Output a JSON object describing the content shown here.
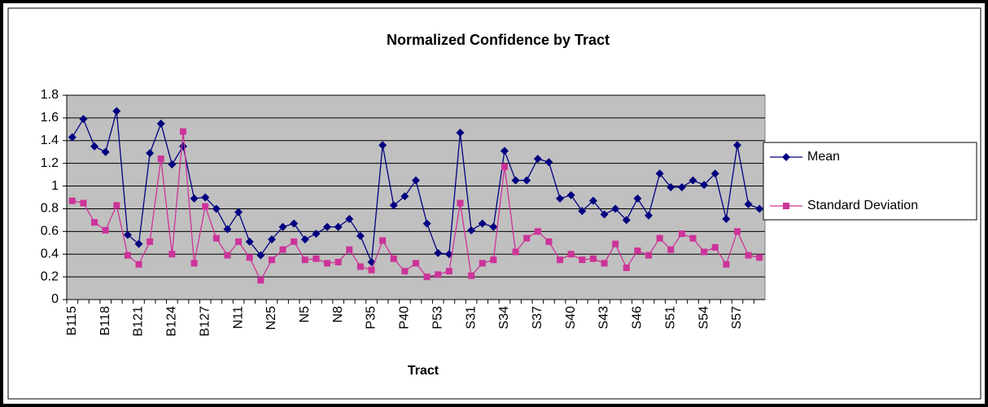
{
  "chart_data": {
    "type": "line",
    "title": "Normalized Confidence by Tract",
    "x_label": "Tract",
    "categories": [
      "B115",
      null,
      null,
      "B118",
      null,
      null,
      "B121",
      null,
      null,
      "B124",
      null,
      null,
      "B127",
      null,
      null,
      "N11",
      null,
      null,
      "N25",
      null,
      null,
      "N5",
      null,
      null,
      "N8",
      null,
      null,
      "P35",
      null,
      null,
      "P40",
      null,
      null,
      "P53",
      null,
      null,
      "S31",
      null,
      null,
      "S34",
      null,
      null,
      "S37",
      null,
      null,
      "S40",
      null,
      null,
      "S43",
      null,
      null,
      "S46",
      null,
      null,
      "S51",
      null,
      null,
      "S54",
      null,
      null,
      "S57",
      null,
      null
    ],
    "series": [
      {
        "name": "Mean",
        "color": "#000080",
        "marker": "diamond",
        "values": [
          1.43,
          1.59,
          1.35,
          1.3,
          1.66,
          0.57,
          0.49,
          1.29,
          1.55,
          1.19,
          1.35,
          0.89,
          0.9,
          0.8,
          0.62,
          0.77,
          0.51,
          0.39,
          0.53,
          0.64,
          0.67,
          0.53,
          0.58,
          0.64,
          0.64,
          0.71,
          0.56,
          0.33,
          1.36,
          0.83,
          0.91,
          1.05,
          0.67,
          0.41,
          0.4,
          1.47,
          0.61,
          0.67,
          0.64,
          1.31,
          1.05,
          1.05,
          1.24,
          1.21,
          0.89,
          0.92,
          0.78,
          0.87,
          0.75,
          0.8,
          0.7,
          0.89,
          0.74,
          1.11,
          0.99,
          0.99,
          1.05,
          1.01,
          1.11,
          0.71,
          1.36,
          0.84,
          0.8
        ]
      },
      {
        "name": "Standard Deviation",
        "color": "#cc3399",
        "marker": "square",
        "values": [
          0.87,
          0.85,
          0.68,
          0.61,
          0.83,
          0.39,
          0.31,
          0.51,
          1.24,
          0.4,
          1.48,
          0.32,
          0.82,
          0.54,
          0.39,
          0.51,
          0.37,
          0.17,
          0.35,
          0.44,
          0.51,
          0.35,
          0.36,
          0.32,
          0.33,
          0.44,
          0.29,
          0.26,
          0.52,
          0.36,
          0.25,
          0.32,
          0.2,
          0.22,
          0.25,
          0.85,
          0.21,
          0.32,
          0.35,
          1.17,
          0.42,
          0.54,
          0.6,
          0.51,
          0.35,
          0.4,
          0.35,
          0.36,
          0.32,
          0.49,
          0.28,
          0.43,
          0.39,
          0.54,
          0.44,
          0.58,
          0.54,
          0.42,
          0.46,
          0.31,
          0.6,
          0.39,
          0.37
        ]
      }
    ],
    "ylim": [
      0,
      1.8
    ],
    "yticks": [
      0,
      0.2,
      0.4,
      0.6,
      0.8,
      1,
      1.2,
      1.4,
      1.6,
      1.8
    ],
    "grid": true,
    "legend": "right",
    "plot_background": "#c0c0c0"
  }
}
